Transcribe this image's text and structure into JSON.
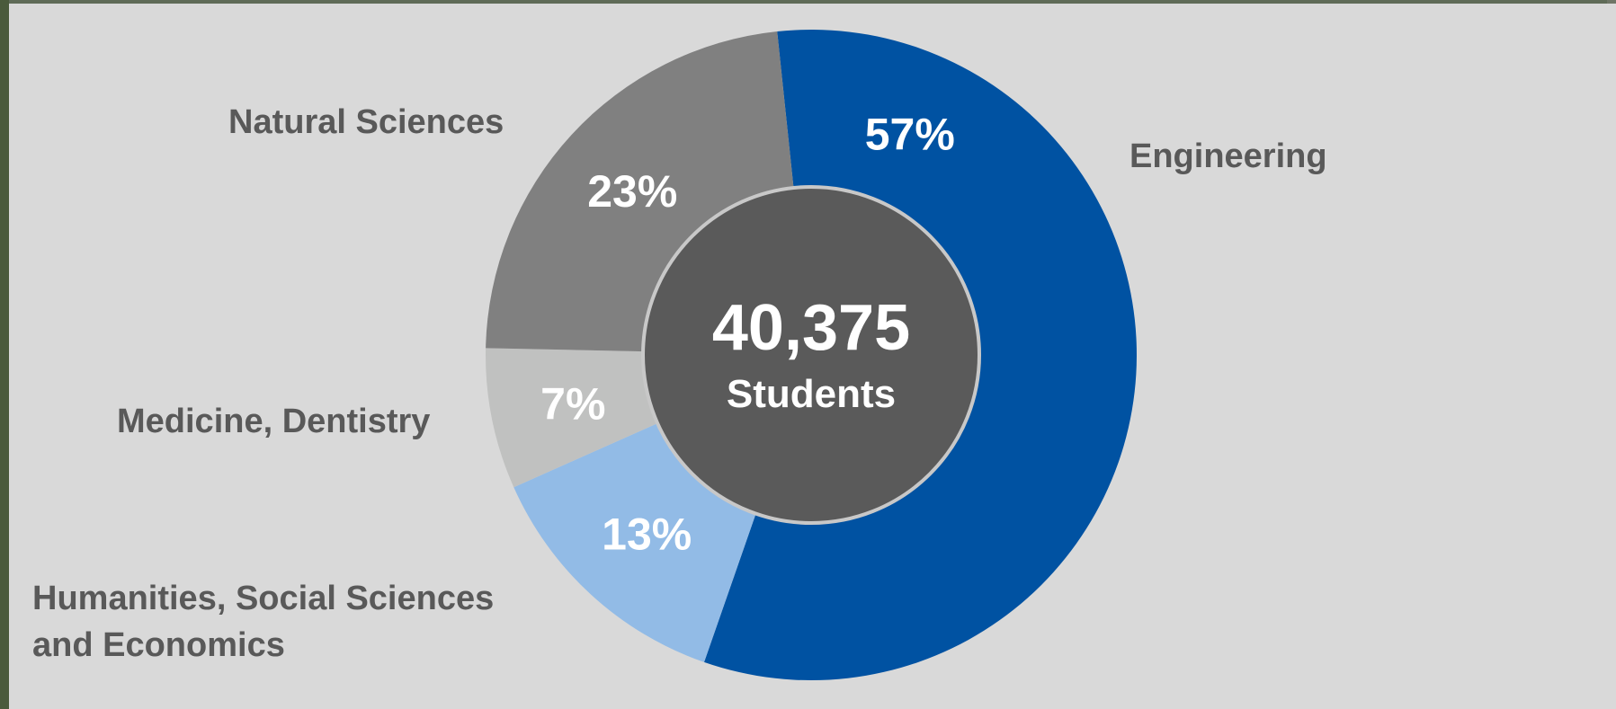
{
  "chart_data": {
    "type": "pie",
    "variant": "donut",
    "center": {
      "value": "40,375",
      "caption": "Students"
    },
    "slices": [
      {
        "label": "Engineering",
        "value": 57,
        "value_label": "57%",
        "color": "#0052a2"
      },
      {
        "label": "Humanities, Social Sciences\nand Economics",
        "value": 13,
        "value_label": "13%",
        "color": "#92bbe6"
      },
      {
        "label": "Medicine, Dentistry",
        "value": 7,
        "value_label": "7%",
        "color": "#c0c1c0"
      },
      {
        "label": "Natural Sciences",
        "value": 23,
        "value_label": "23%",
        "color": "#808080"
      }
    ],
    "center_color": "#5a5a5a",
    "label_color": "#595959"
  }
}
